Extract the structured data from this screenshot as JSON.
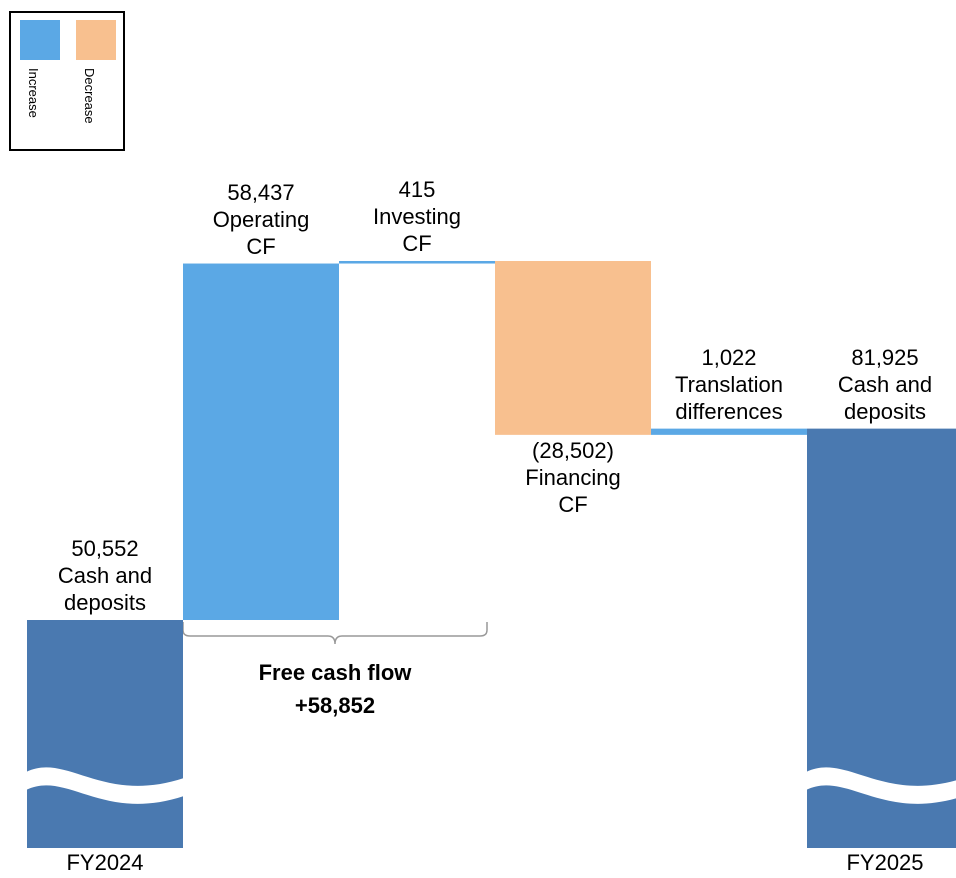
{
  "chart_data": {
    "type": "waterfall",
    "categories": [
      "Cash and deposits",
      "Operating CF",
      "Investing CF",
      "Financing CF",
      "Translation differences",
      "Cash and deposits"
    ],
    "x_labels": [
      "FY2024",
      null,
      null,
      null,
      null,
      "FY2025"
    ],
    "values": [
      50552,
      58437,
      415,
      -28502,
      1022,
      81925
    ],
    "value_labels": [
      "50,552",
      "58,437",
      "415",
      "(28,502)",
      "1,022",
      "81,925"
    ],
    "measure": [
      "absolute",
      "relative",
      "relative",
      "relative",
      "relative",
      "absolute"
    ],
    "legend": [
      {
        "name": "Increase",
        "color": "#5ba8e5"
      },
      {
        "name": "Decrease",
        "color": "#f8c08f"
      }
    ],
    "total_color": "#4a79b0",
    "annotation": {
      "title": "Free cash flow",
      "value_label": "+58,852"
    },
    "axis_break": true
  }
}
